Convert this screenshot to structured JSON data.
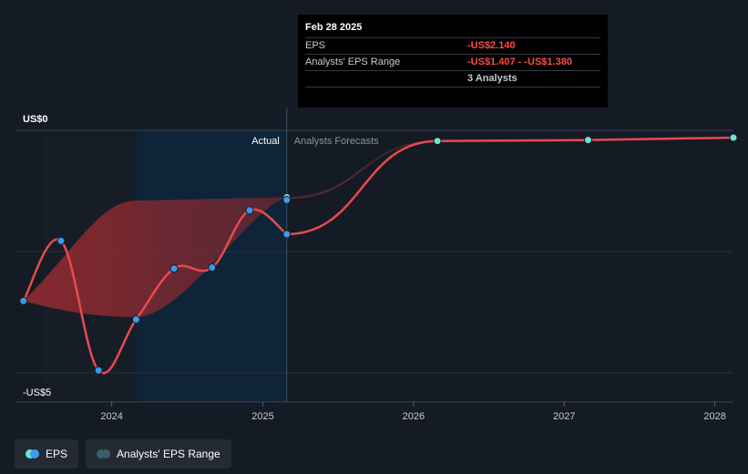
{
  "colors": {
    "background": "#151b24",
    "eps_line": "#e84a4f",
    "actual_point": "#3a9bea",
    "forecast_point": "#6fe3d0",
    "range_fill": "#8c2a30",
    "actual_shade": "#0f2438",
    "grid": "#2a323d"
  },
  "tooltip": {
    "date": "Feb 28 2025",
    "rows": [
      {
        "label": "EPS",
        "value": "-US$2.140"
      },
      {
        "label": "Analysts' EPS Range",
        "value": "-US$1.407 - -US$1.380"
      },
      {
        "label": "",
        "value": "3 Analysts"
      }
    ]
  },
  "legend": [
    {
      "label": "EPS",
      "icon": "eps-legend-icon"
    },
    {
      "label": "Analysts' EPS Range",
      "icon": "range-legend-icon"
    }
  ],
  "chart_data": {
    "type": "line",
    "y_top_label": "US$0",
    "y_bottom_label": "-US$5",
    "region_labels": {
      "actual": "Actual",
      "forecast": "Analysts Forecasts"
    },
    "ylim": [
      -5.0,
      0.0
    ],
    "xlim": [
      "2023-05-15",
      "2028-02-15"
    ],
    "x_ticks": [
      "2024",
      "2025",
      "2026",
      "2027",
      "2028"
    ],
    "x_tick_dates": [
      "2024-01-01",
      "2025-01-01",
      "2026-01-01",
      "2027-01-01",
      "2028-01-01"
    ],
    "actual_start": "2024-03-01",
    "forecast_start": "2025-02-28",
    "grid": true,
    "legend_position": "bottom-left",
    "series": [
      {
        "name": "EPS",
        "kind": "actual",
        "points": [
          {
            "x": "2023-06-01",
            "y": -3.52
          },
          {
            "x": "2023-08-31",
            "y": -2.28
          },
          {
            "x": "2023-11-30",
            "y": -4.95
          },
          {
            "x": "2024-02-29",
            "y": -3.9
          },
          {
            "x": "2024-05-31",
            "y": -2.85
          },
          {
            "x": "2024-08-31",
            "y": -2.83
          },
          {
            "x": "2024-11-30",
            "y": -1.65
          },
          {
            "x": "2025-02-28",
            "y": -2.14
          }
        ]
      },
      {
        "name": "EPS",
        "kind": "forecast",
        "points": [
          {
            "x": "2025-02-28",
            "y": -2.14
          },
          {
            "x": "2026-02-28",
            "y": -0.22
          },
          {
            "x": "2027-02-28",
            "y": -0.2
          },
          {
            "x": "2028-02-15",
            "y": -0.15
          }
        ]
      },
      {
        "name": "Analysts' EPS Range",
        "kind": "range",
        "upper": [
          {
            "x": "2023-06-01",
            "y": -3.52
          },
          {
            "x": "2024-03-01",
            "y": -1.45
          },
          {
            "x": "2025-02-28",
            "y": -1.38
          }
        ],
        "lower": [
          {
            "x": "2023-06-01",
            "y": -3.52
          },
          {
            "x": "2024-03-01",
            "y": -3.85
          },
          {
            "x": "2025-02-28",
            "y": -1.407
          }
        ],
        "forecast_upper": [
          {
            "x": "2025-02-28",
            "y": -1.38
          },
          {
            "x": "2026-02-28",
            "y": -0.22
          }
        ],
        "forecast_lower": [
          {
            "x": "2025-02-28",
            "y": -1.407
          },
          {
            "x": "2026-02-28",
            "y": -0.22
          }
        ]
      }
    ]
  }
}
